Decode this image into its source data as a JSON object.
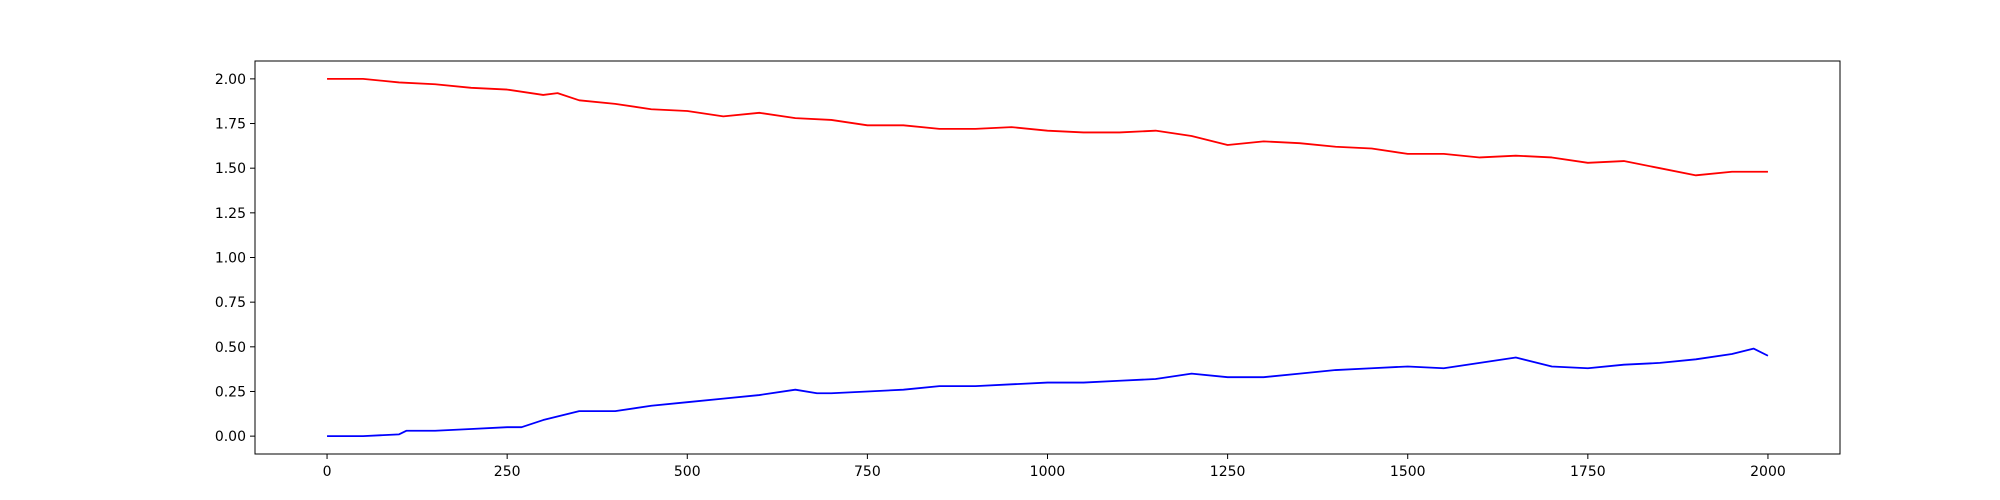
{
  "chart_data": {
    "type": "line",
    "title": "",
    "xlabel": "",
    "ylabel": "",
    "xlim": [
      -100,
      2100
    ],
    "ylim": [
      -0.1,
      2.1
    ],
    "grid": false,
    "xticks": [
      0,
      250,
      500,
      750,
      1000,
      1250,
      1500,
      1750,
      2000
    ],
    "xtick_labels": [
      "0",
      "250",
      "500",
      "750",
      "1000",
      "1250",
      "1500",
      "1750",
      "2000"
    ],
    "yticks": [
      0,
      0.25,
      0.5,
      0.75,
      1.0,
      1.25,
      1.5,
      1.75,
      2.0
    ],
    "ytick_labels": [
      "0.00",
      "0.25",
      "0.50",
      "0.75",
      "1.00",
      "1.25",
      "1.50",
      "1.75",
      "2.00"
    ],
    "series": [
      {
        "color": "#ff0000",
        "x": [
          0,
          50,
          100,
          150,
          200,
          250,
          300,
          320,
          350,
          400,
          450,
          500,
          550,
          600,
          650,
          700,
          750,
          800,
          850,
          900,
          950,
          1000,
          1050,
          1100,
          1150,
          1200,
          1250,
          1300,
          1350,
          1400,
          1450,
          1500,
          1550,
          1600,
          1650,
          1700,
          1750,
          1800,
          1850,
          1900,
          1950,
          2000
        ],
        "y": [
          2.0,
          2.0,
          1.98,
          1.97,
          1.95,
          1.94,
          1.91,
          1.92,
          1.88,
          1.86,
          1.83,
          1.82,
          1.79,
          1.81,
          1.78,
          1.77,
          1.74,
          1.74,
          1.72,
          1.72,
          1.73,
          1.71,
          1.7,
          1.7,
          1.71,
          1.68,
          1.63,
          1.65,
          1.64,
          1.62,
          1.61,
          1.58,
          1.58,
          1.56,
          1.57,
          1.56,
          1.53,
          1.54,
          1.5,
          1.46,
          1.48,
          1.48
        ]
      },
      {
        "color": "#0000ff",
        "x": [
          0,
          50,
          100,
          110,
          150,
          200,
          250,
          270,
          300,
          350,
          400,
          450,
          500,
          550,
          600,
          650,
          680,
          700,
          750,
          800,
          850,
          900,
          950,
          1000,
          1050,
          1100,
          1150,
          1200,
          1250,
          1300,
          1350,
          1400,
          1450,
          1500,
          1550,
          1600,
          1650,
          1700,
          1750,
          1800,
          1850,
          1900,
          1950,
          1980,
          2000
        ],
        "y": [
          0.0,
          0.0,
          0.01,
          0.03,
          0.03,
          0.04,
          0.05,
          0.05,
          0.09,
          0.14,
          0.14,
          0.17,
          0.19,
          0.21,
          0.23,
          0.26,
          0.24,
          0.24,
          0.25,
          0.26,
          0.28,
          0.28,
          0.29,
          0.3,
          0.3,
          0.31,
          0.32,
          0.35,
          0.33,
          0.33,
          0.35,
          0.37,
          0.38,
          0.39,
          0.38,
          0.41,
          0.44,
          0.39,
          0.38,
          0.4,
          0.41,
          0.43,
          0.46,
          0.49,
          0.45
        ]
      }
    ]
  }
}
